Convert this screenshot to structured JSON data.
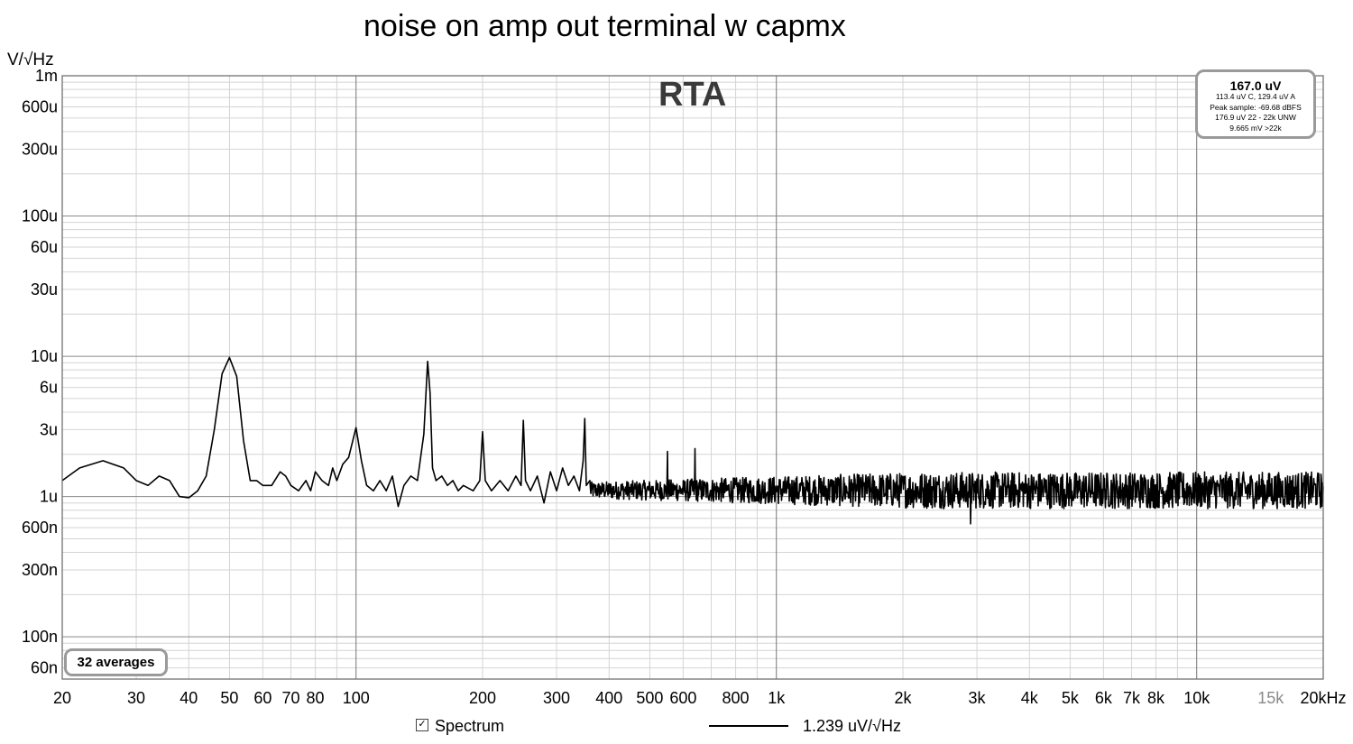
{
  "chart_data": {
    "type": "line",
    "title": "noise on amp out terminal w capmx",
    "chart_name": "RTA",
    "ylabel": "V/√Hz",
    "xlim": [
      20,
      20000
    ],
    "ylim": [
      5e-08,
      0.001
    ],
    "x_scale": "log",
    "y_scale": "log",
    "grid": true,
    "x_ticks": [
      {
        "v": 20,
        "label": "20"
      },
      {
        "v": 30,
        "label": "30"
      },
      {
        "v": 40,
        "label": "40"
      },
      {
        "v": 50,
        "label": "50"
      },
      {
        "v": 60,
        "label": "60"
      },
      {
        "v": 70,
        "label": "70"
      },
      {
        "v": 80,
        "label": "80"
      },
      {
        "v": 100,
        "label": "100"
      },
      {
        "v": 200,
        "label": "200"
      },
      {
        "v": 300,
        "label": "300"
      },
      {
        "v": 400,
        "label": "400"
      },
      {
        "v": 500,
        "label": "500"
      },
      {
        "v": 600,
        "label": "600"
      },
      {
        "v": 800,
        "label": "800"
      },
      {
        "v": 1000,
        "label": "1k"
      },
      {
        "v": 2000,
        "label": "2k"
      },
      {
        "v": 3000,
        "label": "3k"
      },
      {
        "v": 4000,
        "label": "4k"
      },
      {
        "v": 5000,
        "label": "5k"
      },
      {
        "v": 6000,
        "label": "6k"
      },
      {
        "v": 7000,
        "label": "7k"
      },
      {
        "v": 8000,
        "label": "8k"
      },
      {
        "v": 10000,
        "label": "10k"
      },
      {
        "v": 15000,
        "label": "15k",
        "muted": true
      },
      {
        "v": 20000,
        "label": "20kHz"
      }
    ],
    "y_ticks": [
      {
        "v": 0.001,
        "label": "1m"
      },
      {
        "v": 0.0006,
        "label": "600u"
      },
      {
        "v": 0.0003,
        "label": "300u"
      },
      {
        "v": 0.0001,
        "label": "100u"
      },
      {
        "v": 6e-05,
        "label": "60u"
      },
      {
        "v": 3e-05,
        "label": "30u"
      },
      {
        "v": 1e-05,
        "label": "10u"
      },
      {
        "v": 6e-06,
        "label": "6u"
      },
      {
        "v": 3e-06,
        "label": "3u"
      },
      {
        "v": 1e-06,
        "label": "1u"
      },
      {
        "v": 6e-07,
        "label": "600n"
      },
      {
        "v": 3e-07,
        "label": "300n"
      },
      {
        "v": 1e-07,
        "label": "100n"
      },
      {
        "v": 6e-08,
        "label": "60n"
      }
    ],
    "series": [
      {
        "name": "Spectrum",
        "color": "#000000",
        "x": [
          20,
          22,
          25,
          28,
          30,
          32,
          34,
          36,
          38,
          40,
          42,
          44,
          46,
          48,
          50,
          52,
          54,
          56,
          58,
          60,
          63,
          66,
          68,
          70,
          73,
          76,
          78,
          80,
          83,
          86,
          88,
          90,
          93,
          96,
          100,
          103,
          106,
          110,
          114,
          118,
          122,
          126,
          130,
          135,
          140,
          145,
          148,
          150,
          152,
          155,
          160,
          165,
          170,
          175,
          180,
          190,
          197,
          200,
          203,
          210,
          220,
          230,
          240,
          247,
          250,
          253,
          260,
          270,
          280,
          290,
          300,
          310,
          320,
          330,
          340,
          347,
          350,
          353,
          360
        ],
        "y": [
          1.3e-06,
          1.6e-06,
          1.8e-06,
          1.6e-06,
          1.3e-06,
          1.2e-06,
          1.4e-06,
          1.3e-06,
          1e-06,
          9.8e-07,
          1.1e-06,
          1.4e-06,
          3e-06,
          7.5e-06,
          9.8e-06,
          7.2e-06,
          2.5e-06,
          1.3e-06,
          1.3e-06,
          1.2e-06,
          1.2e-06,
          1.5e-06,
          1.4e-06,
          1.2e-06,
          1.1e-06,
          1.3e-06,
          1.1e-06,
          1.5e-06,
          1.3e-06,
          1.2e-06,
          1.6e-06,
          1.3e-06,
          1.7e-06,
          1.9e-06,
          3.1e-06,
          1.8e-06,
          1.2e-06,
          1.1e-06,
          1.3e-06,
          1.1e-06,
          1.4e-06,
          8.5e-07,
          1.2e-06,
          1.4e-06,
          1.3e-06,
          2.8e-06,
          9.2e-06,
          5.5e-06,
          1.6e-06,
          1.3e-06,
          1.4e-06,
          1.2e-06,
          1.3e-06,
          1.1e-06,
          1.2e-06,
          1.1e-06,
          1.3e-06,
          2.9e-06,
          1.3e-06,
          1.1e-06,
          1.3e-06,
          1.1e-06,
          1.4e-06,
          1.2e-06,
          3.5e-06,
          1.3e-06,
          1.1e-06,
          1.4e-06,
          9e-07,
          1.5e-06,
          1.1e-06,
          1.6e-06,
          1.2e-06,
          1.4e-06,
          1.1e-06,
          1.8e-06,
          3.6e-06,
          1.2e-06,
          1.3e-06
        ]
      }
    ],
    "noise_trace": {
      "start_hz": 360,
      "end_hz": 20000,
      "median": 1.11e-06,
      "range_low": 8.2e-07,
      "range_high": 1.5e-06,
      "peaks": [
        {
          "x": 550,
          "y": 2.1e-06
        },
        {
          "x": 640,
          "y": 2.2e-06
        },
        {
          "x": 2900,
          "y": 6.4e-07
        }
      ]
    }
  },
  "stats": {
    "main": "167.0 uV",
    "lines": [
      "113.4 uV C, 129.4 uV A",
      "Peak sample: -69.68 dBFS",
      "176.9 uV 22 - 22k UNW",
      "9.665 mV >22k"
    ]
  },
  "averages_label": "32 averages",
  "legend": {
    "checked": true,
    "checkbox_glyph": "✓",
    "series_name": "Spectrum",
    "value_label": "1.239 uV/√Hz"
  }
}
